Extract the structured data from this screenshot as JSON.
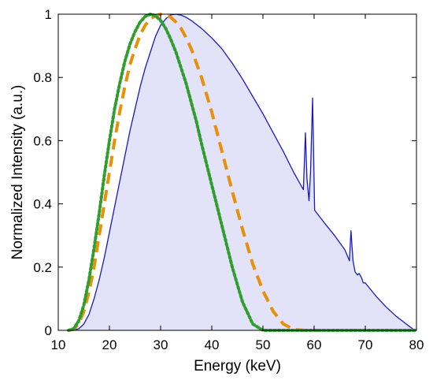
{
  "chart_data": {
    "type": "line",
    "title": "",
    "xlabel": "Energy (keV)",
    "ylabel": "Normalized Intensity (a.u.)",
    "xlim": [
      10,
      80
    ],
    "ylim": [
      0,
      1
    ],
    "xticks": [
      10,
      20,
      30,
      40,
      50,
      60,
      70,
      80
    ],
    "yticks": [
      0,
      0.2,
      0.4,
      0.6,
      0.8,
      1
    ],
    "ytick_labels": [
      "0",
      "0.2",
      "0.4",
      "0.6",
      "0.8",
      "1"
    ],
    "grid": false,
    "legend": "none",
    "series": [
      {
        "style": "solid",
        "color": "#1a1abf",
        "fill": "#e2e2f8",
        "x": [
          13,
          14,
          15,
          16,
          17,
          18,
          19,
          20,
          21,
          22,
          23,
          24,
          25,
          26,
          27,
          28,
          29,
          30,
          31,
          32,
          33,
          34,
          35,
          36,
          38,
          40,
          42,
          44,
          46,
          48,
          50,
          52,
          54,
          56,
          57.9,
          58.3,
          58.6,
          59.0,
          59.3,
          59.7,
          60.1,
          62,
          64,
          66,
          66.9,
          67.2,
          67.6,
          68.0,
          68.5,
          68.8,
          69.3,
          69.6,
          70,
          72,
          74,
          76,
          78,
          79,
          79.6
        ],
        "y": [
          0,
          0.005,
          0.02,
          0.05,
          0.1,
          0.16,
          0.23,
          0.31,
          0.39,
          0.47,
          0.55,
          0.63,
          0.7,
          0.77,
          0.83,
          0.88,
          0.93,
          0.965,
          0.985,
          0.998,
          1.0,
          0.997,
          0.99,
          0.98,
          0.955,
          0.925,
          0.89,
          0.845,
          0.795,
          0.74,
          0.685,
          0.625,
          0.565,
          0.5,
          0.445,
          0.625,
          0.48,
          0.41,
          0.5,
          0.735,
          0.38,
          0.34,
          0.3,
          0.255,
          0.22,
          0.315,
          0.22,
          0.185,
          0.175,
          0.18,
          0.165,
          0.15,
          0.15,
          0.11,
          0.075,
          0.045,
          0.02,
          0.008,
          0
        ]
      },
      {
        "style": "dashed",
        "color": "#e8900a",
        "x": [
          12,
          13,
          14,
          15,
          16,
          17,
          18,
          19,
          20,
          21,
          22,
          23,
          24,
          25,
          26,
          27,
          28,
          29,
          30,
          31,
          32,
          33,
          34,
          35,
          36,
          38,
          40,
          42,
          44,
          46,
          48,
          50,
          52,
          54,
          56,
          58,
          59,
          60,
          61
        ],
        "y": [
          0,
          0.003,
          0.02,
          0.06,
          0.12,
          0.2,
          0.3,
          0.4,
          0.5,
          0.6,
          0.69,
          0.77,
          0.84,
          0.89,
          0.935,
          0.965,
          0.985,
          0.995,
          1.0,
          0.998,
          0.99,
          0.975,
          0.955,
          0.925,
          0.89,
          0.8,
          0.69,
          0.565,
          0.44,
          0.32,
          0.21,
          0.125,
          0.06,
          0.02,
          0.003,
          0,
          0,
          0,
          0
        ]
      },
      {
        "style": "dotted",
        "color": "#2f9e2f",
        "x": [
          12,
          13,
          14,
          15,
          16,
          17,
          18,
          19,
          20,
          21,
          22,
          23,
          24,
          25,
          26,
          27,
          28,
          29,
          30,
          31,
          32,
          33,
          34,
          35,
          36,
          37,
          38,
          40,
          42,
          44,
          46,
          48,
          50,
          51,
          60,
          70,
          80
        ],
        "y": [
          0,
          0.005,
          0.03,
          0.08,
          0.16,
          0.26,
          0.37,
          0.49,
          0.6,
          0.7,
          0.78,
          0.85,
          0.905,
          0.945,
          0.975,
          0.993,
          1.0,
          0.995,
          0.98,
          0.955,
          0.92,
          0.88,
          0.83,
          0.78,
          0.72,
          0.66,
          0.59,
          0.46,
          0.33,
          0.2,
          0.09,
          0.02,
          0,
          0,
          0,
          0,
          0
        ]
      }
    ]
  }
}
